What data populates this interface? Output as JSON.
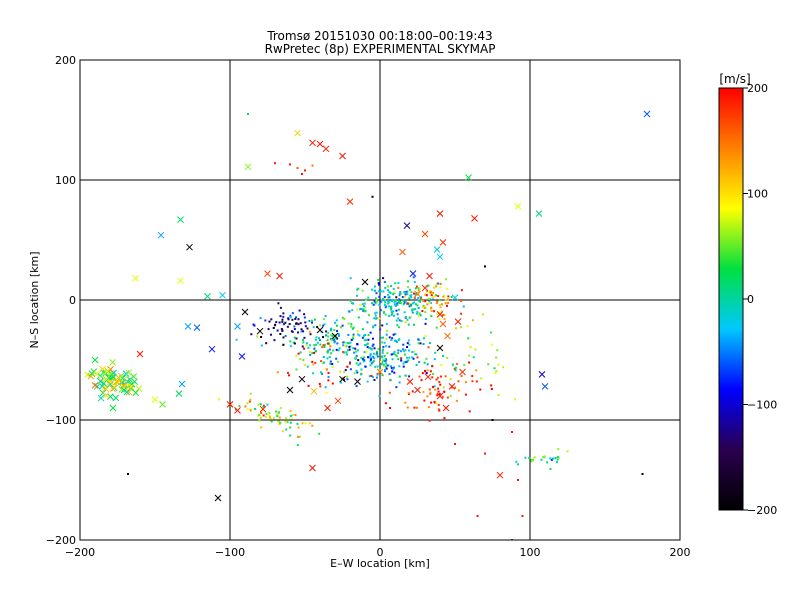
{
  "chart_data": {
    "type": "scatter",
    "title_line1": "Tromsø 20151030 00:18:00–00:19:43",
    "title_line2": "RwPretec (8p) EXPERIMENTAL SKYMAP",
    "xlabel": "E–W location [km]",
    "ylabel": "N–S location [km]",
    "xlim": [
      -200,
      200
    ],
    "ylim": [
      -200,
      200
    ],
    "x_ticks": [
      -200,
      -100,
      0,
      100,
      200
    ],
    "y_ticks": [
      -200,
      -100,
      0,
      100,
      200
    ],
    "x_tick_labels": [
      "−200",
      "−100",
      "0",
      "100",
      "200"
    ],
    "y_tick_labels": [
      "−200",
      "−100",
      "0",
      "100",
      "200"
    ],
    "grid": true,
    "colorbar": {
      "label": "[m/s]",
      "range": [
        -200,
        200
      ],
      "ticks": [
        200,
        100,
        0,
        -100,
        -200
      ],
      "tick_labels": [
        "200",
        "100",
        "0",
        "−100",
        "−200"
      ],
      "colormap": [
        "#000000",
        "#2a0050",
        "#0000ff",
        "#00c8ff",
        "#00e040",
        "#ffff00",
        "#ff8000",
        "#ff0000"
      ]
    },
    "points": [
      {
        "x": 178,
        "y": 155,
        "v": -60,
        "m": "x"
      },
      {
        "x": -88,
        "y": 155,
        "v": 20,
        "m": "d"
      },
      {
        "x": -55,
        "y": 139,
        "v": 110,
        "m": "x"
      },
      {
        "x": -45,
        "y": 131,
        "v": 190,
        "m": "x"
      },
      {
        "x": -40,
        "y": 130,
        "v": 190,
        "m": "x"
      },
      {
        "x": -36,
        "y": 126,
        "v": 190,
        "m": "x"
      },
      {
        "x": -25,
        "y": 120,
        "v": 190,
        "m": "x"
      },
      {
        "x": -88,
        "y": 111,
        "v": 60,
        "m": "x"
      },
      {
        "x": -70,
        "y": 114,
        "v": 190,
        "m": "d"
      },
      {
        "x": -60,
        "y": 113,
        "v": 190,
        "m": "d"
      },
      {
        "x": -55,
        "y": 110,
        "v": 160,
        "m": "d"
      },
      {
        "x": -50,
        "y": 108,
        "v": 190,
        "m": "d"
      },
      {
        "x": -45,
        "y": 112,
        "v": 150,
        "m": "d"
      },
      {
        "x": -52,
        "y": 105,
        "v": 190,
        "m": "d"
      },
      {
        "x": 59,
        "y": 102,
        "v": 30,
        "m": "x"
      },
      {
        "x": -5,
        "y": 86,
        "v": -200,
        "m": "d"
      },
      {
        "x": -20,
        "y": 82,
        "v": 180,
        "m": "x"
      },
      {
        "x": 92,
        "y": 78,
        "v": 80,
        "m": "x"
      },
      {
        "x": 106,
        "y": 72,
        "v": 10,
        "m": "x"
      },
      {
        "x": 40,
        "y": 72,
        "v": 190,
        "m": "x"
      },
      {
        "x": 63,
        "y": 68,
        "v": 190,
        "m": "x"
      },
      {
        "x": 18,
        "y": 62,
        "v": -120,
        "m": "x"
      },
      {
        "x": 30,
        "y": 55,
        "v": 170,
        "m": "x"
      },
      {
        "x": 42,
        "y": 48,
        "v": 180,
        "m": "x"
      },
      {
        "x": -133,
        "y": 67,
        "v": 20,
        "m": "x"
      },
      {
        "x": -146,
        "y": 54,
        "v": -40,
        "m": "x"
      },
      {
        "x": -127,
        "y": 44,
        "v": -200,
        "m": "x"
      },
      {
        "x": -163,
        "y": 18,
        "v": 80,
        "m": "x"
      },
      {
        "x": -133,
        "y": 16,
        "v": 80,
        "m": "x"
      },
      {
        "x": -75,
        "y": 22,
        "v": 170,
        "m": "x"
      },
      {
        "x": -67,
        "y": 20,
        "v": 190,
        "m": "x"
      },
      {
        "x": -10,
        "y": 15,
        "v": -200,
        "m": "x"
      },
      {
        "x": 70,
        "y": 28,
        "v": -200,
        "m": "d"
      },
      {
        "x": -115,
        "y": 3,
        "v": 10,
        "m": "x"
      },
      {
        "x": -105,
        "y": 4,
        "v": -30,
        "m": "x"
      },
      {
        "x": -190,
        "y": -50,
        "v": 30,
        "m": "x"
      },
      {
        "x": -160,
        "y": -45,
        "v": 190,
        "m": "x"
      },
      {
        "x": -112,
        "y": -41,
        "v": -80,
        "m": "x"
      },
      {
        "x": -92,
        "y": -47,
        "v": -80,
        "m": "x"
      },
      {
        "x": -128,
        "y": -22,
        "v": -40,
        "m": "x"
      },
      {
        "x": -122,
        "y": -23,
        "v": -60,
        "m": "x"
      },
      {
        "x": -95,
        "y": -22,
        "v": -40,
        "m": "x"
      },
      {
        "x": -90,
        "y": -10,
        "v": -200,
        "m": "x"
      },
      {
        "x": -80,
        "y": -26,
        "v": -200,
        "m": "x"
      },
      {
        "x": -40,
        "y": -25,
        "v": -200,
        "m": "x"
      },
      {
        "x": -30,
        "y": -30,
        "v": -200,
        "m": "x"
      },
      {
        "x": -132,
        "y": -70,
        "v": -40,
        "m": "x"
      },
      {
        "x": -134,
        "y": -78,
        "v": 20,
        "m": "x"
      },
      {
        "x": -178,
        "y": -90,
        "v": 30,
        "m": "x"
      },
      {
        "x": -150,
        "y": -83,
        "v": 80,
        "m": "x"
      },
      {
        "x": -145,
        "y": -87,
        "v": 50,
        "m": "x"
      },
      {
        "x": -100,
        "y": -87,
        "v": 190,
        "m": "x"
      },
      {
        "x": -95,
        "y": -92,
        "v": 190,
        "m": "x"
      },
      {
        "x": -78,
        "y": -91,
        "v": 190,
        "m": "x"
      },
      {
        "x": -60,
        "y": -75,
        "v": -200,
        "m": "x"
      },
      {
        "x": -52,
        "y": -66,
        "v": -200,
        "m": "x"
      },
      {
        "x": -44,
        "y": -76,
        "v": 120,
        "m": "x"
      },
      {
        "x": -35,
        "y": -90,
        "v": 190,
        "m": "x"
      },
      {
        "x": -28,
        "y": -84,
        "v": 170,
        "m": "x"
      },
      {
        "x": -25,
        "y": -66,
        "v": -200,
        "m": "x"
      },
      {
        "x": -15,
        "y": -68,
        "v": -200,
        "m": "x"
      },
      {
        "x": 0,
        "y": -60,
        "v": 150,
        "m": "x"
      },
      {
        "x": -45,
        "y": -140,
        "v": 190,
        "m": "x"
      },
      {
        "x": -108,
        "y": -165,
        "v": -200,
        "m": "x"
      },
      {
        "x": -168,
        "y": -145,
        "v": -200,
        "m": "d"
      },
      {
        "x": 175,
        "y": -145,
        "v": -200,
        "m": "d"
      },
      {
        "x": 80,
        "y": -146,
        "v": 190,
        "m": "x"
      },
      {
        "x": 110,
        "y": -72,
        "v": -60,
        "m": "x"
      },
      {
        "x": 108,
        "y": -62,
        "v": -100,
        "m": "x"
      },
      {
        "x": 20,
        "y": -68,
        "v": 190,
        "m": "x"
      },
      {
        "x": 25,
        "y": -75,
        "v": 190,
        "m": "x"
      },
      {
        "x": 32,
        "y": -64,
        "v": 190,
        "m": "x"
      },
      {
        "x": 40,
        "y": -80,
        "v": 190,
        "m": "x"
      },
      {
        "x": 44,
        "y": -90,
        "v": 190,
        "m": "x"
      },
      {
        "x": 48,
        "y": -72,
        "v": 190,
        "m": "x"
      },
      {
        "x": 55,
        "y": -60,
        "v": 180,
        "m": "x"
      },
      {
        "x": 40,
        "y": -40,
        "v": -200,
        "m": "x"
      },
      {
        "x": 45,
        "y": -30,
        "v": 150,
        "m": "x"
      },
      {
        "x": 52,
        "y": -18,
        "v": 190,
        "m": "x"
      },
      {
        "x": 40,
        "y": -12,
        "v": 190,
        "m": "x"
      },
      {
        "x": 42,
        "y": -20,
        "v": 160,
        "m": "x"
      },
      {
        "x": 30,
        "y": 10,
        "v": 180,
        "m": "x"
      },
      {
        "x": 25,
        "y": 5,
        "v": 150,
        "m": "x"
      },
      {
        "x": 22,
        "y": 22,
        "v": -80,
        "m": "x"
      },
      {
        "x": 33,
        "y": 20,
        "v": 190,
        "m": "x"
      },
      {
        "x": 40,
        "y": 36,
        "v": -30,
        "m": "x"
      },
      {
        "x": 38,
        "y": 42,
        "v": -20,
        "m": "x"
      },
      {
        "x": 50,
        "y": 2,
        "v": -20,
        "m": "x"
      },
      {
        "x": 15,
        "y": 40,
        "v": 160,
        "m": "x"
      },
      {
        "x": 88,
        "y": -110,
        "v": 190,
        "m": "d"
      },
      {
        "x": 92,
        "y": -150,
        "v": 190,
        "m": "d"
      },
      {
        "x": 95,
        "y": -180,
        "v": 190,
        "m": "d"
      },
      {
        "x": 65,
        "y": -180,
        "v": 190,
        "m": "d"
      },
      {
        "x": 70,
        "y": -128,
        "v": 190,
        "m": "d"
      },
      {
        "x": 50,
        "y": -120,
        "v": 190,
        "m": "d"
      },
      {
        "x": 75,
        "y": -100,
        "v": -200,
        "m": "d"
      },
      {
        "x": 88,
        "y": -200,
        "v": 190,
        "m": "d"
      }
    ],
    "clusters": [
      {
        "cx": -178,
        "cy": -68,
        "sx": 9,
        "sy": 6,
        "n": 70,
        "v": 50,
        "m": "x",
        "tilt": -0.35
      },
      {
        "cx": 10,
        "cy": -2,
        "sx": 14,
        "sy": 9,
        "n": 220,
        "v": -10,
        "m": "d"
      },
      {
        "cx": 35,
        "cy": 2,
        "sx": 8,
        "sy": 8,
        "n": 70,
        "v": 130,
        "m": "d"
      },
      {
        "cx": 0,
        "cy": -48,
        "sx": 18,
        "sy": 11,
        "n": 200,
        "v": -40,
        "m": "d"
      },
      {
        "cx": -28,
        "cy": -35,
        "sx": 18,
        "sy": 12,
        "n": 160,
        "v": 0,
        "m": "d"
      },
      {
        "cx": -62,
        "cy": -22,
        "sx": 10,
        "sy": 7,
        "n": 70,
        "v": -120,
        "m": "d"
      },
      {
        "cx": -75,
        "cy": -95,
        "sx": 14,
        "sy": 5,
        "n": 55,
        "v": 70,
        "m": "d",
        "tilt": -0.35
      },
      {
        "cx": 112,
        "cy": -133,
        "sx": 8,
        "sy": 3,
        "n": 25,
        "v": 20,
        "m": "d"
      },
      {
        "cx": 38,
        "cy": -75,
        "sx": 14,
        "sy": 12,
        "n": 70,
        "v": 185,
        "m": "d"
      },
      {
        "cx": -58,
        "cy": -105,
        "sx": 6,
        "sy": 6,
        "n": 15,
        "v": 70,
        "m": "d"
      },
      {
        "cx": 60,
        "cy": -50,
        "sx": 16,
        "sy": 18,
        "n": 40,
        "v": 60,
        "m": "d"
      },
      {
        "cx": -40,
        "cy": -60,
        "sx": 12,
        "sy": 12,
        "n": 30,
        "v": 170,
        "m": "d"
      }
    ]
  }
}
